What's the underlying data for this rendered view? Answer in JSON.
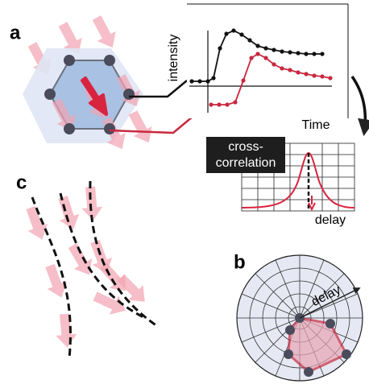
{
  "panels": {
    "a": "a",
    "b": "b",
    "c": "c"
  },
  "intensity_plot": {
    "y_label": "intensity",
    "x_label": "Time"
  },
  "cross_correlation": {
    "label_lines": [
      "cross-",
      "correlation"
    ],
    "delay_label": "delay"
  },
  "polar_plot": {
    "delay_label": "delay"
  }
}
